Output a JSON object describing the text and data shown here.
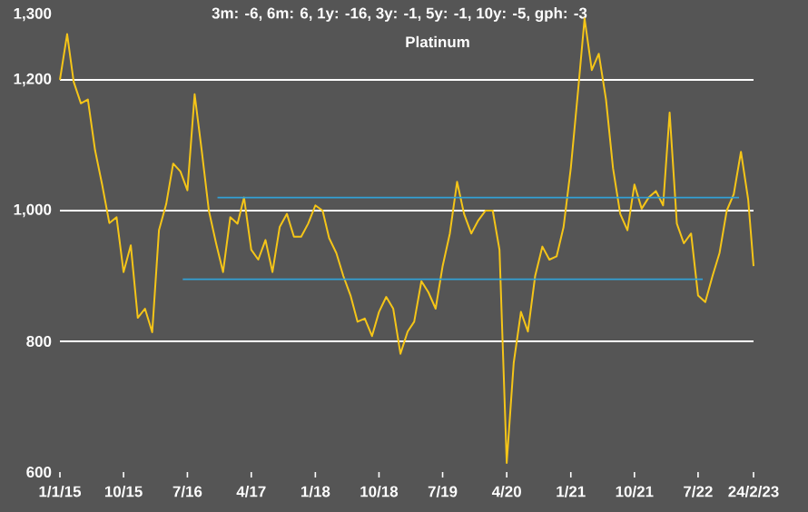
{
  "chart_data": {
    "type": "line",
    "title": "Platinum",
    "subtitle": "3m: -6, 6m: 6, 1y: -16, 3y: -1, 5y: -1, 10y: -5, gph: -3",
    "x": [
      "2015-01",
      "2015-02",
      "2015-03",
      "2015-04",
      "2015-05",
      "2015-06",
      "2015-07",
      "2015-08",
      "2015-09",
      "2015-10",
      "2015-11",
      "2015-12",
      "2016-01",
      "2016-02",
      "2016-03",
      "2016-04",
      "2016-05",
      "2016-06",
      "2016-07",
      "2016-08",
      "2016-09",
      "2016-10",
      "2016-11",
      "2016-12",
      "2017-01",
      "2017-02",
      "2017-03",
      "2017-04",
      "2017-05",
      "2017-06",
      "2017-07",
      "2017-08",
      "2017-09",
      "2017-10",
      "2017-11",
      "2017-12",
      "2018-01",
      "2018-02",
      "2018-03",
      "2018-04",
      "2018-05",
      "2018-06",
      "2018-07",
      "2018-08",
      "2018-09",
      "2018-10",
      "2018-11",
      "2018-12",
      "2019-01",
      "2019-02",
      "2019-03",
      "2019-04",
      "2019-05",
      "2019-06",
      "2019-07",
      "2019-08",
      "2019-09",
      "2019-10",
      "2019-11",
      "2019-12",
      "2020-01",
      "2020-02",
      "2020-03",
      "2020-04",
      "2020-05",
      "2020-06",
      "2020-07",
      "2020-08",
      "2020-09",
      "2020-10",
      "2020-11",
      "2020-12",
      "2021-01",
      "2021-02",
      "2021-03",
      "2021-04",
      "2021-05",
      "2021-06",
      "2021-07",
      "2021-08",
      "2021-09",
      "2021-10",
      "2021-11",
      "2021-12",
      "2022-01",
      "2022-02",
      "2022-03",
      "2022-04",
      "2022-05",
      "2022-06",
      "2022-07",
      "2022-08",
      "2022-09",
      "2022-10",
      "2022-11",
      "2022-12",
      "2023-01",
      "2023-02",
      "2023-02-24"
    ],
    "series": [
      {
        "color": "#f5c518",
        "values": [
          1200,
          1270,
          1197,
          1164,
          1170,
          1092,
          1040,
          981,
          990,
          906,
          947,
          836,
          850,
          814,
          970,
          1010,
          1072,
          1060,
          1031,
          1178,
          1090,
          1000,
          950,
          906,
          990,
          980,
          1020,
          940,
          925,
          955,
          906,
          975,
          995,
          960,
          960,
          980,
          1008,
          1000,
          958,
          935,
          900,
          870,
          830,
          835,
          808,
          845,
          868,
          850,
          781,
          815,
          830,
          892,
          875,
          850,
          915,
          965,
          1044,
          995,
          965,
          985,
          1000,
          1000,
          940,
          614,
          767,
          845,
          815,
          900,
          945,
          925,
          930,
          975,
          1065,
          1183,
          1294,
          1215,
          1240,
          1170,
          1065,
          995,
          970,
          1040,
          1003,
          1020,
          1030,
          1008,
          1150,
          980,
          950,
          965,
          870,
          860,
          900,
          935,
          1000,
          1025,
          1090,
          1017,
          915
        ]
      },
      {
        "color": "#33a1d6",
        "x": [
          "2016-11-07",
          "2022-12-24"
        ],
        "values": [
          1020,
          1020
        ]
      },
      {
        "color": "#33a1d6",
        "x": [
          "2016-06-11",
          "2022-07-21"
        ],
        "values": [
          895,
          895
        ]
      }
    ],
    "xlim": [
      "2015-01-01",
      "2023-02-24"
    ],
    "xticks": [
      {
        "value": "2015-01-01",
        "label": "1/1/15"
      },
      {
        "value": "2015-10-01",
        "label": "10/15"
      },
      {
        "value": "2016-07-01",
        "label": "7/16"
      },
      {
        "value": "2017-04-01",
        "label": "4/17"
      },
      {
        "value": "2018-01-01",
        "label": "1/18"
      },
      {
        "value": "2018-10-01",
        "label": "10/18"
      },
      {
        "value": "2019-07-01",
        "label": "7/19"
      },
      {
        "value": "2020-04-01",
        "label": "4/20"
      },
      {
        "value": "2021-01-01",
        "label": "1/21"
      },
      {
        "value": "2021-10-01",
        "label": "10/21"
      },
      {
        "value": "2022-07-01",
        "label": "7/22"
      },
      {
        "value": "2023-02-24",
        "label": "24/2/23"
      }
    ],
    "ylim": [
      600,
      1300
    ],
    "yticks": [
      600,
      800,
      {
        "value": 1000,
        "label": "1,000"
      },
      {
        "value": 1200,
        "label": "1,200"
      },
      {
        "value": 1300,
        "label": "1,300"
      }
    ],
    "ref_lines": [
      {
        "axis": "y",
        "value": 800,
        "color": "#ffffff"
      },
      {
        "axis": "y",
        "value": 1000,
        "color": "#ffffff"
      },
      {
        "axis": "y",
        "value": 1200,
        "color": "#ffffff"
      }
    ]
  }
}
